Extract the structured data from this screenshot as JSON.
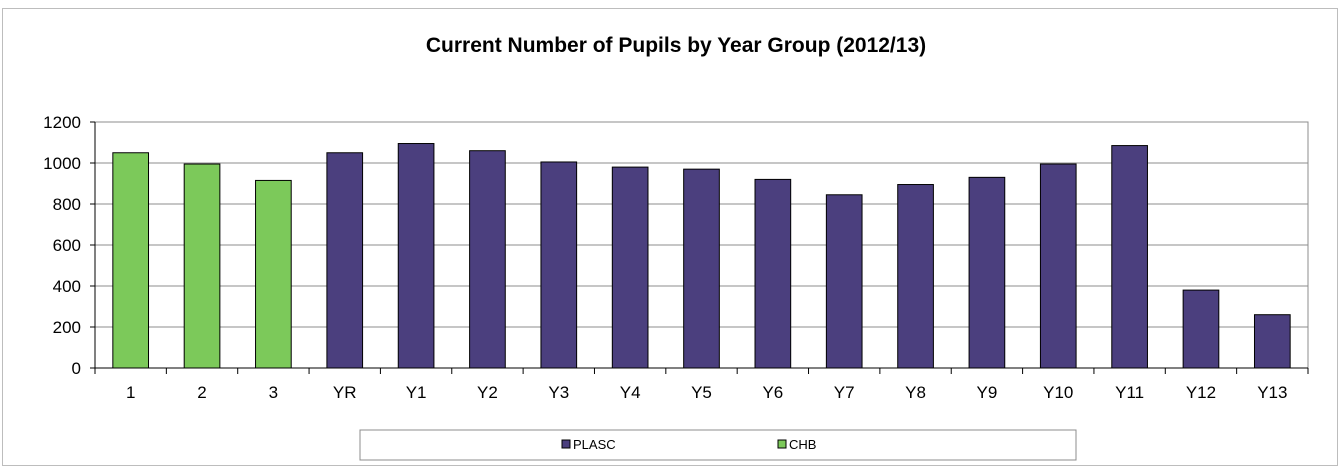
{
  "chart_data": {
    "type": "bar",
    "title": "Current Number of Pupils by Year Group (2012/13)",
    "xlabel": "",
    "ylabel": "",
    "ylim": [
      0,
      1200
    ],
    "yticks": [
      0,
      200,
      400,
      600,
      800,
      1000,
      1200
    ],
    "grid": true,
    "legend_position": "bottom",
    "categories": [
      "1",
      "2",
      "3",
      "YR",
      "Y1",
      "Y2",
      "Y3",
      "Y4",
      "Y5",
      "Y6",
      "Y7",
      "Y8",
      "Y9",
      "Y10",
      "Y11",
      "Y12",
      "Y13"
    ],
    "series": [
      {
        "name": "PLASC",
        "color": "#4b3f7e",
        "values": [
          null,
          null,
          null,
          1050,
          1095,
          1060,
          1005,
          980,
          970,
          920,
          845,
          895,
          930,
          995,
          1085,
          380,
          260
        ]
      },
      {
        "name": "CHB",
        "color": "#7cc95a",
        "values": [
          1050,
          995,
          915,
          null,
          null,
          null,
          null,
          null,
          null,
          null,
          null,
          null,
          null,
          null,
          null,
          null,
          null
        ]
      }
    ]
  }
}
